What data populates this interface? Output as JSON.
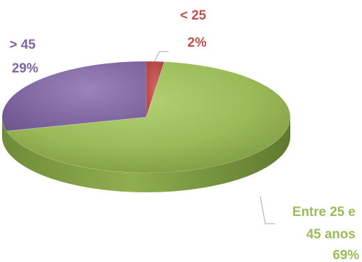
{
  "chart_data": {
    "type": "pie",
    "style": "3d-pie",
    "categories": [
      "< 25",
      "Entre 25 e 45 anos",
      "> 45"
    ],
    "values": [
      2,
      69,
      29
    ],
    "value_labels": [
      "2%",
      "69%",
      "29%"
    ],
    "colors": [
      "#C0504D",
      "#9BBB59",
      "#8064A2"
    ],
    "label_lines": {
      "lt25": [
        "< 25",
        "2%"
      ],
      "mid": [
        "Entre 25 e",
        "45 anos",
        "69%"
      ],
      "gt45": [
        "> 45",
        "29%"
      ]
    },
    "legend": "none"
  }
}
